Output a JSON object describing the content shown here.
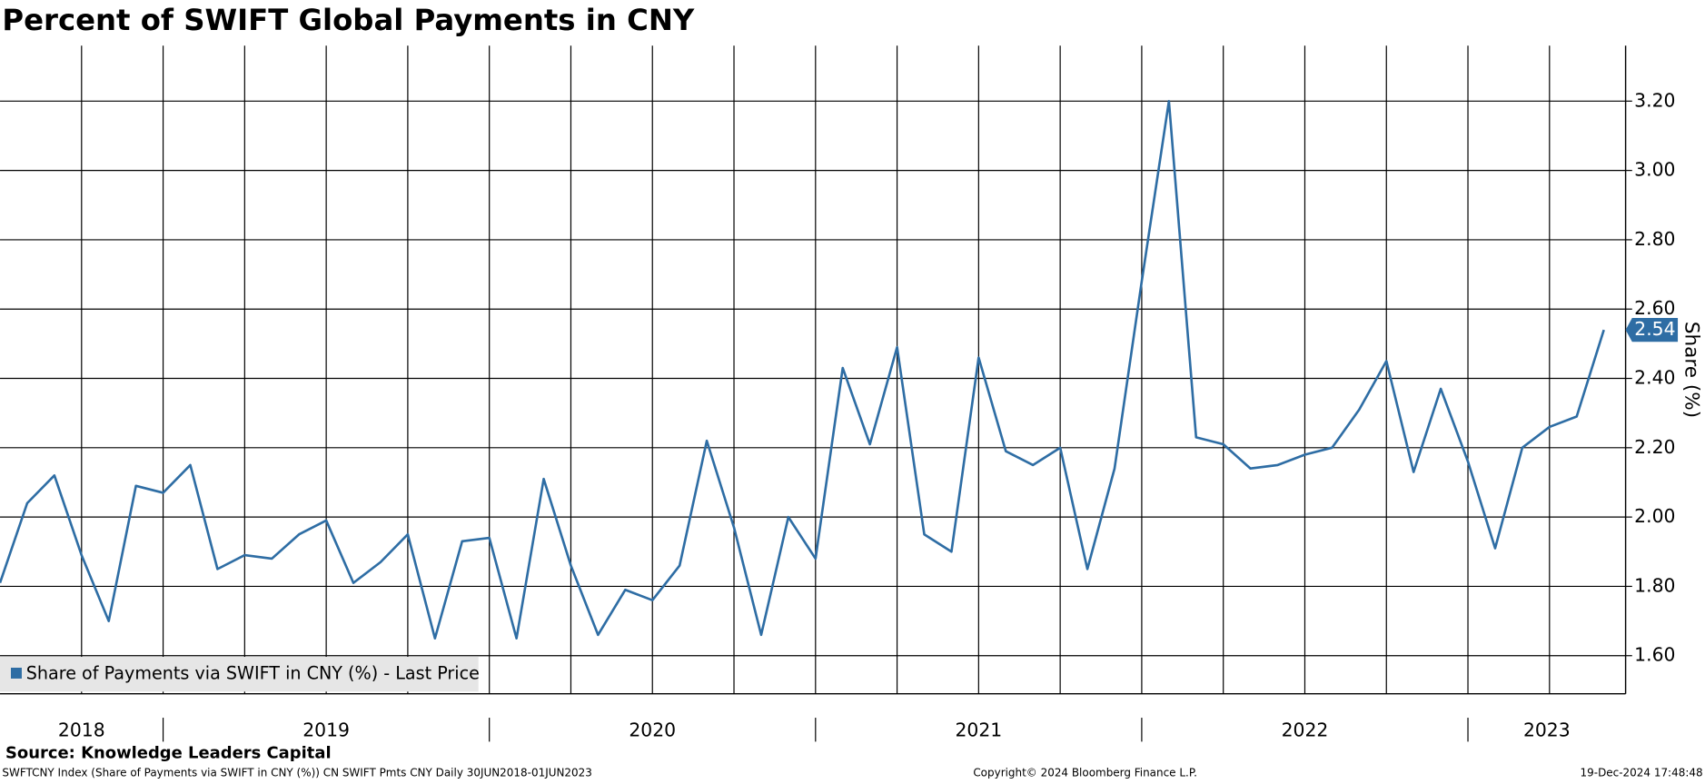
{
  "chart_data": {
    "type": "line",
    "title": "Percent of SWIFT Global Payments in CNY",
    "y_axis_label": "Share (%)",
    "source": "Source: Knowledge Leaders Capital",
    "footer_left": "SWFTCNY Index (Share of Payments via SWIFT in CNY (%)) CN SWIFT Pmts CNY  Daily 30JUN2018-01JUN2023",
    "footer_center": "Copyright© 2024 Bloomberg Finance L.P.",
    "footer_right": "19-Dec-2024 17:48:48",
    "x_labels": [
      "2018",
      "2019",
      "2020",
      "2021",
      "2022",
      "2023"
    ],
    "series": [
      {
        "name": "Share of Payments via SWIFT in CNY (%) - Last Price",
        "color": "#2e6da4",
        "values": [
          1.81,
          2.04,
          2.12,
          1.89,
          1.7,
          2.09,
          2.07,
          2.15,
          1.85,
          1.89,
          1.88,
          1.95,
          1.99,
          1.81,
          1.87,
          1.95,
          1.65,
          1.93,
          1.94,
          1.65,
          2.11,
          1.86,
          1.66,
          1.79,
          1.76,
          1.86,
          2.22,
          1.97,
          1.66,
          2.0,
          1.88,
          2.43,
          2.21,
          2.49,
          1.95,
          1.9,
          2.46,
          2.19,
          2.15,
          2.2,
          1.85,
          2.14,
          2.68,
          3.2,
          2.23,
          2.21,
          2.14,
          2.15,
          2.18,
          2.2,
          2.31,
          2.45,
          2.13,
          2.37,
          2.16,
          1.91,
          2.2,
          2.26,
          2.29,
          2.54
        ]
      }
    ],
    "ylim": [
      1.49,
      3.36
    ],
    "yticks": [
      {
        "value": 1.6,
        "label": "1.60"
      },
      {
        "value": 1.8,
        "label": "1.80"
      },
      {
        "value": 2.0,
        "label": "2.00"
      },
      {
        "value": 2.2,
        "label": "2.20"
      },
      {
        "value": 2.4,
        "label": "2.40"
      },
      {
        "value": 2.6,
        "label": "2.60"
      },
      {
        "value": 2.8,
        "label": "2.80"
      },
      {
        "value": 3.0,
        "label": "3.00"
      },
      {
        "value": 3.2,
        "label": "3.20"
      }
    ],
    "grid": true
  }
}
